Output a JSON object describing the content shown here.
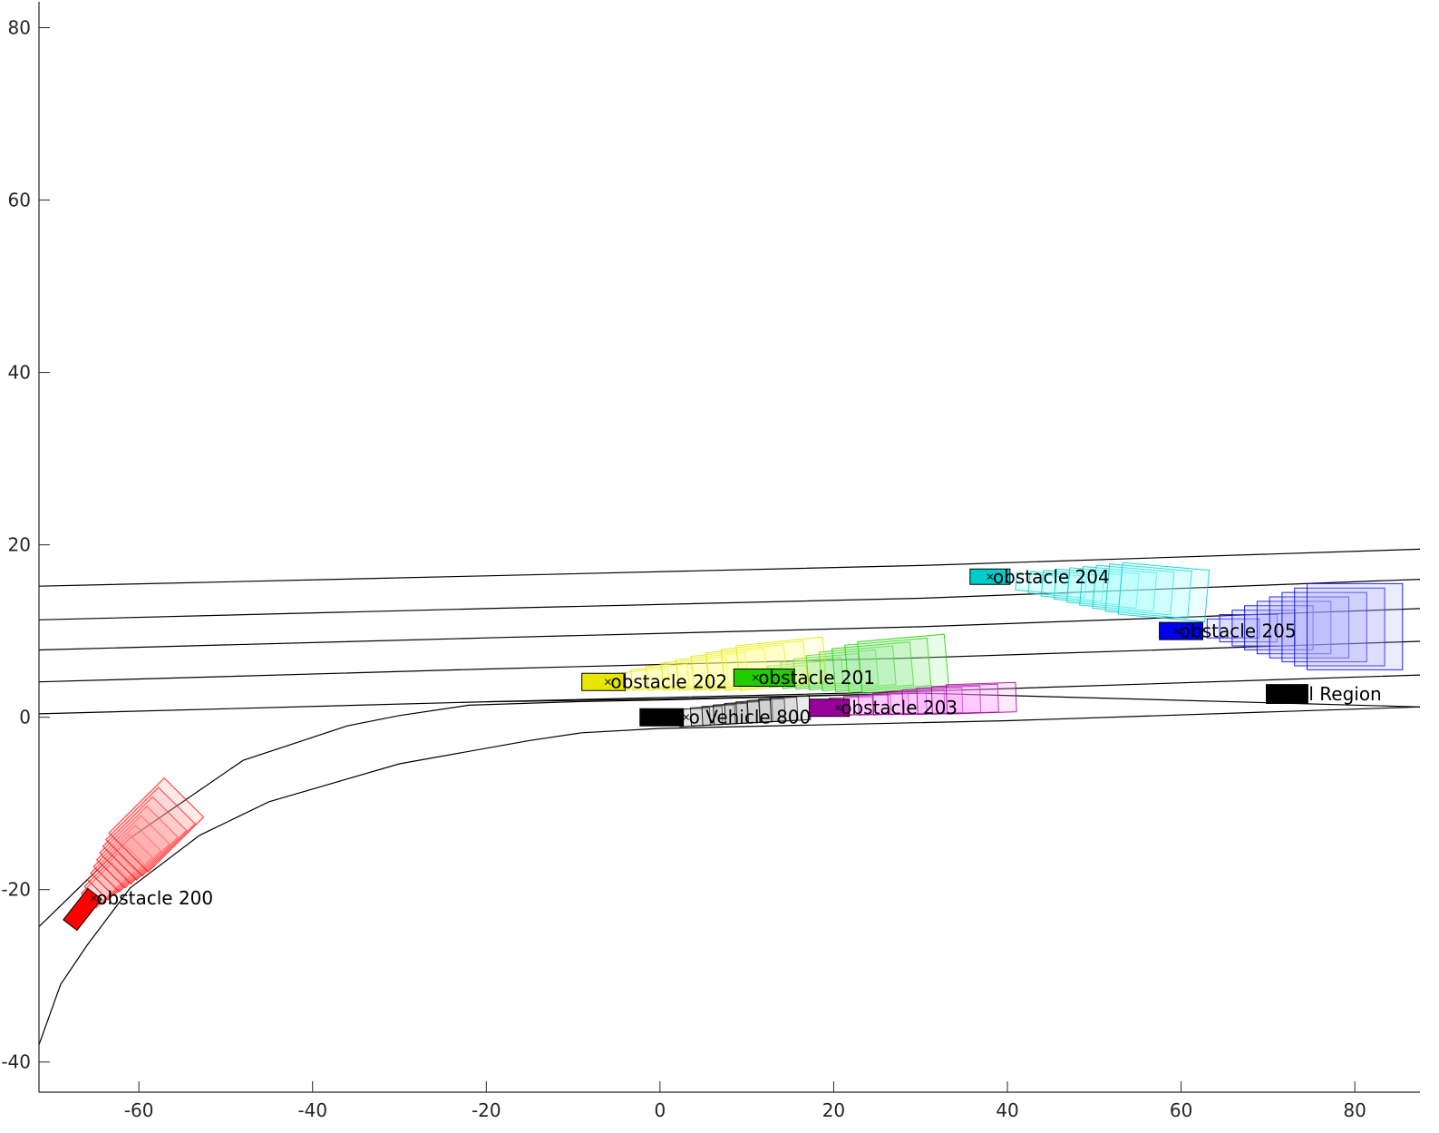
{
  "chart_data": {
    "type": "scatter",
    "title": "",
    "xlabel": "",
    "ylabel": "",
    "xlim": [
      -71.5,
      87.5
    ],
    "ylim": [
      -43.5,
      83
    ],
    "xticks": [
      -60,
      -40,
      -20,
      0,
      20,
      40,
      60,
      80
    ],
    "yticks": [
      -40,
      -20,
      0,
      20,
      40,
      60,
      80
    ],
    "grid": false,
    "legend": "none",
    "road_lines": [
      [
        [
          -71.5,
          15.2
        ],
        [
          -20,
          16.4
        ],
        [
          30,
          17.6
        ],
        [
          87.5,
          19.5
        ]
      ],
      [
        [
          -71.5,
          11.3
        ],
        [
          -20,
          12.6
        ],
        [
          30,
          13.8
        ],
        [
          87.5,
          16.0
        ]
      ],
      [
        [
          -71.5,
          7.8
        ],
        [
          -20,
          9.2
        ],
        [
          30,
          10.5
        ],
        [
          87.5,
          12.6
        ]
      ],
      [
        [
          -71.5,
          4.1
        ],
        [
          -20,
          5.6
        ],
        [
          30,
          6.9
        ],
        [
          87.5,
          8.8
        ]
      ],
      [
        [
          -71.5,
          0.4
        ],
        [
          -20,
          1.8
        ],
        [
          30,
          3.0
        ],
        [
          87.5,
          4.9
        ]
      ],
      [
        [
          -20,
          1.8
        ],
        [
          0,
          2.1
        ],
        [
          30,
          2.8
        ],
        [
          87.5,
          1.2
        ]
      ],
      [
        [
          -71.5,
          -24.3
        ],
        [
          -61,
          -14
        ],
        [
          -48,
          -5
        ],
        [
          -36,
          -1
        ],
        [
          -30,
          0.2
        ],
        [
          -22,
          1.4
        ],
        [
          -10,
          1.8
        ],
        [
          0,
          2.0
        ],
        [
          30,
          2.8
        ]
      ],
      [
        [
          -71.5,
          -38
        ],
        [
          -69,
          -31
        ],
        [
          -66,
          -26.5
        ],
        [
          -61,
          -19.8
        ],
        [
          -53,
          -13.7
        ],
        [
          -45,
          -9.8
        ],
        [
          -30,
          -5.4
        ],
        [
          -15,
          -2.7
        ],
        [
          -9,
          -1.8
        ],
        [
          0,
          -1.3
        ],
        [
          40,
          -0.4
        ],
        [
          87.5,
          1.2
        ]
      ]
    ],
    "objects": [
      {
        "label": "obstacle 200",
        "color": "#ff0000",
        "fill": "#ff9999",
        "shape": {
          "x": -66.5,
          "y": -22.3,
          "length": 4.6,
          "width": 2.0,
          "heading_deg": 52
        },
        "marker": {
          "x": -65.2,
          "y": -21.0
        },
        "occupancy_region": {
          "start": [
            -64,
            -19.5
          ],
          "end": [
            -58,
            -12.5
          ],
          "steps": 10,
          "length_start": 5,
          "length_end": 9,
          "width_start": 2.4,
          "width_end": 6.4,
          "heading_deg": 45
        }
      },
      {
        "label": "obstacle 201",
        "color": "#22cc00",
        "fill": "#99ee99",
        "shape": {
          "x": 12.0,
          "y": 4.6,
          "length": 7.0,
          "width": 2.0,
          "heading_deg": 0
        },
        "marker": {
          "x": 11.0,
          "y": 4.6
        },
        "occupancy_region": {
          "start": [
            14,
            4.8
          ],
          "end": [
            28,
            6.2
          ],
          "steps": 9,
          "length_start": 6,
          "length_end": 10,
          "width_start": 2.0,
          "width_end": 6.0,
          "heading_deg": 5
        }
      },
      {
        "label": "obstacle 202",
        "color": "#e6e600",
        "fill": "#ffff99",
        "shape": {
          "x": -6.5,
          "y": 4.1,
          "length": 5.0,
          "width": 2.0,
          "heading_deg": 0
        },
        "marker": {
          "x": -6.0,
          "y": 4.1
        },
        "occupancy_region": {
          "start": [
            -2,
            4.4
          ],
          "end": [
            14,
            6.2
          ],
          "steps": 9,
          "length_start": 6,
          "length_end": 10,
          "width_start": 2.0,
          "width_end": 5.2,
          "heading_deg": 6
        }
      },
      {
        "label": "obstacle 203",
        "color": "#990099",
        "fill": "#ff99ff",
        "shape": {
          "x": 19.5,
          "y": 1.1,
          "length": 4.6,
          "width": 2.0,
          "heading_deg": 0
        },
        "marker": {
          "x": 20.5,
          "y": 1.1
        },
        "occupancy_region": {
          "start": [
            22,
            1.3
          ],
          "end": [
            37,
            2.2
          ],
          "steps": 9,
          "length_start": 5,
          "length_end": 8,
          "width_start": 2.0,
          "width_end": 3.4,
          "heading_deg": 2
        }
      },
      {
        "label": "obstacle 204",
        "color": "#00cccc",
        "fill": "#aaffff",
        "shape": {
          "x": 38.0,
          "y": 16.3,
          "length": 4.6,
          "width": 1.8,
          "heading_deg": 0
        },
        "marker": {
          "x": 38.0,
          "y": 16.3
        },
        "occupancy_region": {
          "start": [
            44,
            15.5
          ],
          "end": [
            58,
            14.5
          ],
          "steps": 9,
          "length_start": 6,
          "length_end": 10,
          "width_start": 2.0,
          "width_end": 6.0,
          "heading_deg": -5
        }
      },
      {
        "label": "obstacle 205",
        "color": "#0000ee",
        "fill": "#aaaaff",
        "shape": {
          "x": 60.0,
          "y": 10.0,
          "length": 5.0,
          "width": 2.0,
          "heading_deg": 0
        },
        "marker": {
          "x": 59.5,
          "y": 10.0
        },
        "occupancy_region": {
          "start": [
            66,
            10.3
          ],
          "end": [
            80,
            10.5
          ],
          "steps": 9,
          "length_start": 6,
          "length_end": 11,
          "width_start": 2.2,
          "width_end": 10.0,
          "heading_deg": 0
        }
      },
      {
        "label": "o Vehicle 800",
        "color": "#000000",
        "fill": "#aaaaaa",
        "shape": {
          "x": 0.2,
          "y": 0.0,
          "length": 5.0,
          "width": 2.0,
          "heading_deg": 0
        },
        "marker": {
          "x": 3.0,
          "y": 0.0
        },
        "occupancy_region": {
          "start": [
            4,
            0.0
          ],
          "end": [
            15,
            1.0
          ],
          "steps": 9,
          "length_start": 3.5,
          "length_end": 4.5,
          "width_start": 2.0,
          "width_end": 2.8,
          "heading_deg": 3
        }
      },
      {
        "label": "al Region",
        "color": "#000000",
        "fill": "#000000",
        "shape": {
          "x": 72.2,
          "y": 2.7,
          "length": 4.8,
          "width": 2.2,
          "heading_deg": 0
        },
        "marker": null,
        "occupancy_region": null
      }
    ]
  }
}
